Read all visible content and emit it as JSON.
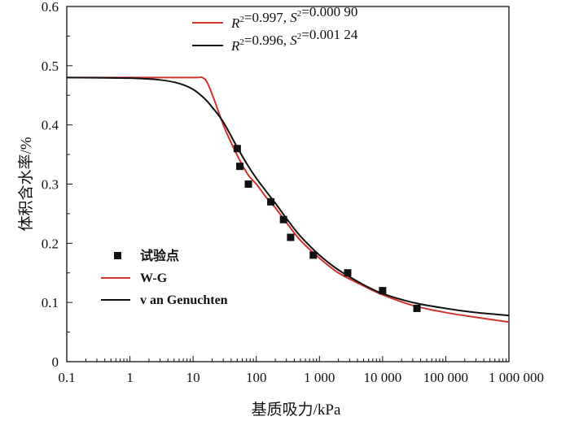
{
  "chart_data": {
    "type": "scatter",
    "xlabel": "基质吸力/kPa",
    "ylabel": "体积含水率/%",
    "xscale": "log",
    "xlim": [
      0.1,
      1000000
    ],
    "ylim": [
      0,
      0.6
    ],
    "x_ticks": [
      {
        "value": 0.1,
        "label": "0.1"
      },
      {
        "value": 1,
        "label": "1"
      },
      {
        "value": 10,
        "label": "10"
      },
      {
        "value": 100,
        "label": "100"
      },
      {
        "value": 1000,
        "label": "1 000"
      },
      {
        "value": 10000,
        "label": "10 000"
      },
      {
        "value": 100000,
        "label": "100 000"
      },
      {
        "value": 1000000,
        "label": "1 000 000"
      }
    ],
    "y_ticks": [
      {
        "value": 0,
        "label": "0"
      },
      {
        "value": 0.1,
        "label": "0.1"
      },
      {
        "value": 0.2,
        "label": "0.2"
      },
      {
        "value": 0.3,
        "label": "0.3"
      },
      {
        "value": 0.4,
        "label": "0.4"
      },
      {
        "value": 0.5,
        "label": "0.5"
      },
      {
        "value": 0.6,
        "label": "0.6"
      }
    ],
    "legend_position": "left-bottom",
    "series": [
      {
        "name": "试验点",
        "kind": "markers",
        "color": "#111111",
        "points": [
          {
            "x": 50,
            "y": 0.36
          },
          {
            "x": 55,
            "y": 0.33
          },
          {
            "x": 75,
            "y": 0.3
          },
          {
            "x": 170,
            "y": 0.27
          },
          {
            "x": 270,
            "y": 0.24
          },
          {
            "x": 350,
            "y": 0.21
          },
          {
            "x": 800,
            "y": 0.18
          },
          {
            "x": 2800,
            "y": 0.15
          },
          {
            "x": 10000,
            "y": 0.12
          },
          {
            "x": 35000,
            "y": 0.09
          }
        ]
      },
      {
        "name": "W-G",
        "kind": "line",
        "color": "#d2322d",
        "points": [
          {
            "x": 0.1,
            "y": 0.48
          },
          {
            "x": 1,
            "y": 0.48
          },
          {
            "x": 10,
            "y": 0.48
          },
          {
            "x": 14,
            "y": 0.48
          },
          {
            "x": 17,
            "y": 0.47
          },
          {
            "x": 22,
            "y": 0.44
          },
          {
            "x": 30,
            "y": 0.4
          },
          {
            "x": 40,
            "y": 0.37
          },
          {
            "x": 55,
            "y": 0.34
          },
          {
            "x": 75,
            "y": 0.315
          },
          {
            "x": 100,
            "y": 0.3
          },
          {
            "x": 150,
            "y": 0.275
          },
          {
            "x": 200,
            "y": 0.26
          },
          {
            "x": 300,
            "y": 0.235
          },
          {
            "x": 500,
            "y": 0.205
          },
          {
            "x": 1000,
            "y": 0.175
          },
          {
            "x": 2000,
            "y": 0.15
          },
          {
            "x": 5000,
            "y": 0.128
          },
          {
            "x": 10000,
            "y": 0.113
          },
          {
            "x": 30000,
            "y": 0.095
          },
          {
            "x": 100000,
            "y": 0.083
          },
          {
            "x": 300000,
            "y": 0.075
          },
          {
            "x": 1000000,
            "y": 0.067
          }
        ]
      },
      {
        "name": "van Genuchten",
        "kind": "line",
        "color": "#111111",
        "points": [
          {
            "x": 0.1,
            "y": 0.48
          },
          {
            "x": 1,
            "y": 0.479
          },
          {
            "x": 3,
            "y": 0.476
          },
          {
            "x": 6,
            "y": 0.47
          },
          {
            "x": 10,
            "y": 0.46
          },
          {
            "x": 15,
            "y": 0.445
          },
          {
            "x": 20,
            "y": 0.43
          },
          {
            "x": 30,
            "y": 0.405
          },
          {
            "x": 50,
            "y": 0.362
          },
          {
            "x": 75,
            "y": 0.33
          },
          {
            "x": 100,
            "y": 0.31
          },
          {
            "x": 150,
            "y": 0.285
          },
          {
            "x": 200,
            "y": 0.268
          },
          {
            "x": 300,
            "y": 0.242
          },
          {
            "x": 500,
            "y": 0.212
          },
          {
            "x": 1000,
            "y": 0.18
          },
          {
            "x": 2000,
            "y": 0.155
          },
          {
            "x": 5000,
            "y": 0.13
          },
          {
            "x": 10000,
            "y": 0.115
          },
          {
            "x": 30000,
            "y": 0.1
          },
          {
            "x": 100000,
            "y": 0.09
          },
          {
            "x": 300000,
            "y": 0.083
          },
          {
            "x": 1000000,
            "y": 0.078
          }
        ]
      }
    ],
    "fit_stats": [
      {
        "series": "W-G",
        "color": "#d2322d",
        "r2_label": "R",
        "r2_sup": "2",
        "r2_value": "=0.997, ",
        "s2_label": "S",
        "s2_sup": "2",
        "s2_value": "=0.000 90"
      },
      {
        "series": "van Genuchten",
        "color": "#111111",
        "r2_label": "R",
        "r2_sup": "2",
        "r2_value": "=0.996, ",
        "s2_label": "S",
        "s2_sup": "2",
        "s2_value": "=0.001 24"
      }
    ],
    "legend": [
      {
        "label": "试验点",
        "kind": "marker",
        "color": "#111111"
      },
      {
        "label": "W-G",
        "kind": "line",
        "color": "#d2322d"
      },
      {
        "label": "v an Genuchten",
        "kind": "line",
        "color": "#111111"
      }
    ]
  }
}
